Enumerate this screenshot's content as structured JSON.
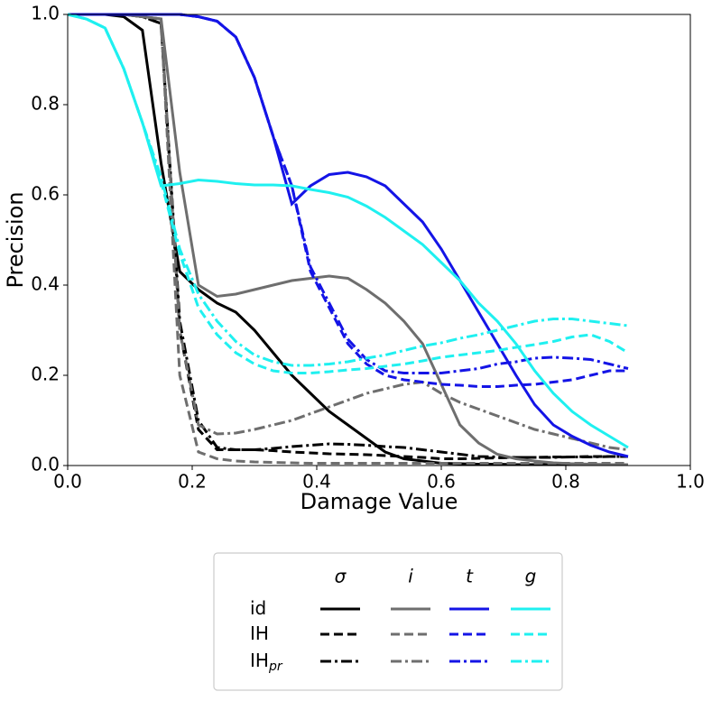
{
  "chart_data": {
    "type": "line",
    "x_label": "Damage Value",
    "y_label": "Precision",
    "xlim": [
      0,
      1
    ],
    "ylim": [
      0,
      1
    ],
    "xticks": [
      {
        "value": 0,
        "label": "0.0"
      },
      0.2,
      0.4,
      0.6,
      0.8,
      {
        "value": 1,
        "label": "1.0"
      }
    ],
    "yticks": [
      {
        "value": 0,
        "label": "0.0"
      },
      0.2,
      0.4,
      0.6,
      0.8,
      {
        "value": 1,
        "label": "1.0"
      }
    ],
    "grid": false,
    "x": [
      0,
      0.03,
      0.06,
      0.09,
      0.12,
      0.15,
      0.18,
      0.21,
      0.24,
      0.27,
      0.3,
      0.33,
      0.36,
      0.39,
      0.42,
      0.45,
      0.48,
      0.51,
      0.54,
      0.57,
      0.6,
      0.63,
      0.66,
      0.69,
      0.72,
      0.75,
      0.78,
      0.81,
      0.84,
      0.87,
      0.9
    ],
    "legend": {
      "columns": [
        {
          "label": "σ",
          "color": "#000000"
        },
        {
          "label": "i",
          "color": "#6e6e6e"
        },
        {
          "label": "t",
          "color": "#1414e6"
        },
        {
          "label": "g",
          "color": "#1ff0f0"
        }
      ],
      "rows": [
        {
          "label": "id",
          "dash": "solid"
        },
        {
          "label": "IH",
          "dash": "dashed"
        },
        {
          "label": "IH",
          "subscript": "pr",
          "dash": "dashdot"
        }
      ]
    },
    "series": [
      {
        "color": "#000000",
        "dash": "solid",
        "values": [
          1,
          1,
          1,
          0.995,
          0.965,
          0.67,
          0.43,
          0.39,
          0.36,
          0.34,
          0.3,
          0.25,
          0.2,
          0.16,
          0.12,
          0.09,
          0.06,
          0.03,
          0.015,
          0.01,
          0.005,
          0.004,
          0.003,
          0.003,
          0.002,
          0.002,
          0.002,
          0.002,
          0.002,
          0.002,
          0.002
        ]
      },
      {
        "color": "#000000",
        "dash": "dashed",
        "values": [
          1,
          1,
          1,
          1,
          0.995,
          0.98,
          0.3,
          0.08,
          0.035,
          0.035,
          0.035,
          0.033,
          0.03,
          0.028,
          0.026,
          0.025,
          0.024,
          0.022,
          0.02,
          0.018,
          0.015,
          0.015,
          0.016,
          0.017,
          0.018,
          0.018,
          0.019,
          0.019,
          0.02,
          0.02,
          0.02
        ]
      },
      {
        "color": "#000000",
        "dash": "dashdot",
        "values": [
          1,
          1,
          1,
          1,
          0.995,
          0.98,
          0.32,
          0.1,
          0.04,
          0.035,
          0.035,
          0.038,
          0.042,
          0.045,
          0.048,
          0.047,
          0.045,
          0.042,
          0.04,
          0.035,
          0.03,
          0.025,
          0.02,
          0.019,
          0.018,
          0.018,
          0.018,
          0.019,
          0.019,
          0.02,
          0.02
        ]
      },
      {
        "color": "#6e6e6e",
        "dash": "solid",
        "values": [
          1,
          1,
          1,
          1,
          0.995,
          0.99,
          0.65,
          0.4,
          0.375,
          0.38,
          0.39,
          0.4,
          0.41,
          0.415,
          0.42,
          0.415,
          0.39,
          0.36,
          0.32,
          0.27,
          0.18,
          0.09,
          0.05,
          0.025,
          0.015,
          0.01,
          0.006,
          0.004,
          0.003,
          0.002,
          0.002
        ]
      },
      {
        "color": "#6e6e6e",
        "dash": "dashed",
        "values": [
          1,
          1,
          1,
          1,
          0.995,
          0.99,
          0.2,
          0.03,
          0.015,
          0.01,
          0.008,
          0.007,
          0.006,
          0.005,
          0.005,
          0.005,
          0.005,
          0.005,
          0.005,
          0.005,
          0.005,
          0.005,
          0.005,
          0.005,
          0.005,
          0.005,
          0.005,
          0.005,
          0.005,
          0.005,
          0.005
        ]
      },
      {
        "color": "#6e6e6e",
        "dash": "dashdot",
        "values": [
          1,
          1,
          1,
          1,
          0.995,
          0.99,
          0.3,
          0.09,
          0.07,
          0.072,
          0.08,
          0.09,
          0.1,
          0.115,
          0.13,
          0.145,
          0.16,
          0.17,
          0.18,
          0.185,
          0.16,
          0.14,
          0.125,
          0.11,
          0.095,
          0.08,
          0.07,
          0.06,
          0.05,
          0.04,
          0.035
        ]
      },
      {
        "color": "#1414e6",
        "dash": "solid",
        "values": [
          1,
          1,
          1,
          1,
          1,
          1,
          1,
          0.995,
          0.985,
          0.95,
          0.86,
          0.73,
          0.58,
          0.62,
          0.645,
          0.65,
          0.64,
          0.62,
          0.58,
          0.54,
          0.48,
          0.41,
          0.34,
          0.27,
          0.2,
          0.135,
          0.09,
          0.065,
          0.045,
          0.03,
          0.02
        ]
      },
      {
        "color": "#1414e6",
        "dash": "dashed",
        "values": [
          1,
          1,
          1,
          1,
          1,
          1,
          1,
          0.995,
          0.985,
          0.95,
          0.86,
          0.73,
          0.62,
          0.43,
          0.35,
          0.27,
          0.225,
          0.2,
          0.19,
          0.185,
          0.18,
          0.178,
          0.175,
          0.175,
          0.178,
          0.18,
          0.185,
          0.19,
          0.2,
          0.21,
          0.21
        ]
      },
      {
        "color": "#1414e6",
        "dash": "dashdot",
        "values": [
          1,
          1,
          1,
          1,
          1,
          1,
          1,
          0.995,
          0.985,
          0.95,
          0.86,
          0.73,
          0.62,
          0.44,
          0.36,
          0.28,
          0.235,
          0.21,
          0.205,
          0.205,
          0.205,
          0.21,
          0.215,
          0.225,
          0.23,
          0.238,
          0.24,
          0.238,
          0.235,
          0.225,
          0.215
        ]
      },
      {
        "color": "#1ff0f0",
        "dash": "solid",
        "values": [
          1,
          0.99,
          0.97,
          0.88,
          0.76,
          0.62,
          0.625,
          0.633,
          0.63,
          0.625,
          0.622,
          0.622,
          0.62,
          0.612,
          0.605,
          0.595,
          0.575,
          0.55,
          0.52,
          0.49,
          0.45,
          0.41,
          0.36,
          0.32,
          0.27,
          0.21,
          0.16,
          0.12,
          0.09,
          0.065,
          0.04
        ]
      },
      {
        "color": "#1ff0f0",
        "dash": "dashed",
        "values": [
          1,
          0.99,
          0.97,
          0.88,
          0.76,
          0.63,
          0.47,
          0.35,
          0.29,
          0.25,
          0.225,
          0.21,
          0.205,
          0.205,
          0.208,
          0.212,
          0.215,
          0.22,
          0.225,
          0.232,
          0.24,
          0.245,
          0.25,
          0.255,
          0.262,
          0.268,
          0.275,
          0.285,
          0.29,
          0.275,
          0.25
        ]
      },
      {
        "color": "#1ff0f0",
        "dash": "dashdot",
        "values": [
          1,
          0.99,
          0.97,
          0.88,
          0.76,
          0.64,
          0.48,
          0.38,
          0.32,
          0.275,
          0.245,
          0.23,
          0.222,
          0.222,
          0.225,
          0.23,
          0.238,
          0.245,
          0.255,
          0.265,
          0.272,
          0.282,
          0.29,
          0.3,
          0.31,
          0.32,
          0.325,
          0.325,
          0.32,
          0.315,
          0.31
        ]
      }
    ]
  }
}
